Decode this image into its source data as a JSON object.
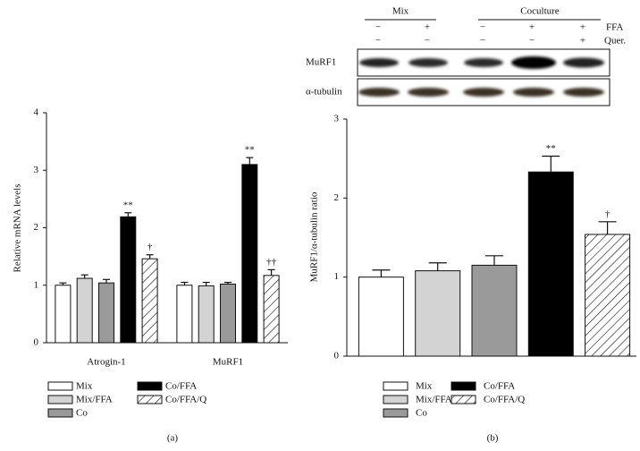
{
  "chart_data": [
    {
      "type": "bar",
      "y_label": "Relative mRNA levels",
      "caption": "(a)",
      "categories": [
        "Atrogin-1",
        "MuRF1"
      ],
      "series": [
        {
          "name": "Mix",
          "color": "#ffffff",
          "values": [
            1.0,
            1.0
          ],
          "errors": [
            0.04,
            0.05
          ],
          "labels": [
            null,
            null
          ]
        },
        {
          "name": "Mix/FFA",
          "color": "#d3d3d3",
          "values": [
            1.12,
            0.99
          ],
          "errors": [
            0.06,
            0.06
          ],
          "labels": [
            null,
            null
          ]
        },
        {
          "name": "Co",
          "color": "#9a9a9a",
          "values": [
            1.04,
            1.02
          ],
          "errors": [
            0.06,
            0.03
          ],
          "labels": [
            null,
            null
          ]
        },
        {
          "name": "Co/FFA",
          "color": "#000000",
          "values": [
            2.19,
            3.1
          ],
          "errors": [
            0.07,
            0.12
          ],
          "labels": [
            "**",
            "**"
          ]
        },
        {
          "name": "Co/FFA/Q",
          "color": "#ffffff",
          "hatch": true,
          "values": [
            1.46,
            1.17
          ],
          "errors": [
            0.07,
            0.1
          ],
          "labels": [
            "†",
            "††"
          ]
        }
      ],
      "ylim": [
        0,
        4
      ],
      "yticks": [
        0,
        1,
        2,
        3,
        4
      ]
    },
    {
      "type": "bar",
      "y_label": "MuRF1/α-tubulin ratio",
      "caption": "(b)",
      "categories": [
        null
      ],
      "series": [
        {
          "name": "Mix",
          "color": "#ffffff",
          "values": [
            1.0
          ],
          "errors": [
            0.09
          ],
          "labels": [
            null
          ]
        },
        {
          "name": "Mix/FFA",
          "color": "#d3d3d3",
          "values": [
            1.08
          ],
          "errors": [
            0.1
          ],
          "labels": [
            null
          ]
        },
        {
          "name": "Co",
          "color": "#9a9a9a",
          "values": [
            1.15
          ],
          "errors": [
            0.12
          ],
          "labels": [
            null
          ]
        },
        {
          "name": "Co/FFA",
          "color": "#000000",
          "values": [
            2.33
          ],
          "errors": [
            0.2
          ],
          "labels": [
            "**"
          ]
        },
        {
          "name": "Co/FFA/Q",
          "color": "#ffffff",
          "hatch": true,
          "values": [
            1.54
          ],
          "errors": [
            0.16
          ],
          "labels": [
            "†"
          ]
        }
      ],
      "ylim": [
        0,
        3
      ],
      "yticks": [
        0,
        1,
        2,
        3
      ]
    }
  ],
  "blot": {
    "groups": [
      "Mix",
      "Coculture"
    ],
    "rows": [
      {
        "name": "FFA",
        "signs": [
          "−",
          "+",
          "−",
          "+",
          "+"
        ]
      },
      {
        "name": "Quer.",
        "signs": [
          "−",
          "−",
          "−",
          "−",
          "+"
        ]
      }
    ],
    "bands": [
      "MuRF1",
      "α-tubulin"
    ]
  }
}
